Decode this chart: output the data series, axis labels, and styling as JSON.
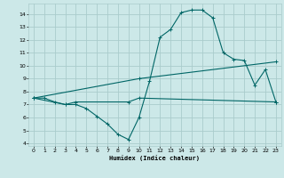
{
  "xlabel": "Humidex (Indice chaleur)",
  "bg_color": "#cce8e8",
  "grid_color": "#aacccc",
  "line_color": "#006666",
  "xlim": [
    -0.5,
    23.5
  ],
  "ylim": [
    3.8,
    14.8
  ],
  "yticks": [
    4,
    5,
    6,
    7,
    8,
    9,
    10,
    11,
    12,
    13,
    14
  ],
  "xticks": [
    0,
    1,
    2,
    3,
    4,
    5,
    6,
    7,
    8,
    9,
    10,
    11,
    12,
    13,
    14,
    15,
    16,
    17,
    18,
    19,
    20,
    21,
    22,
    23
  ],
  "line1_x": [
    0,
    1,
    2,
    3,
    4,
    5,
    6,
    7,
    8,
    9,
    10,
    11,
    12,
    13,
    14,
    15,
    16,
    17,
    18,
    19,
    20,
    21,
    22,
    23
  ],
  "line1_y": [
    7.5,
    7.5,
    7.2,
    7.0,
    7.0,
    6.7,
    6.1,
    5.5,
    4.7,
    4.3,
    6.0,
    8.8,
    12.2,
    12.8,
    14.1,
    14.3,
    14.3,
    13.7,
    11.0,
    10.5,
    10.4,
    8.5,
    9.7,
    7.2
  ],
  "line2_x": [
    0,
    3,
    4,
    9,
    10,
    23
  ],
  "line2_y": [
    7.5,
    7.0,
    7.2,
    7.2,
    7.5,
    7.2
  ],
  "line3_x": [
    0,
    10,
    23
  ],
  "line3_y": [
    7.5,
    9.0,
    10.3
  ]
}
